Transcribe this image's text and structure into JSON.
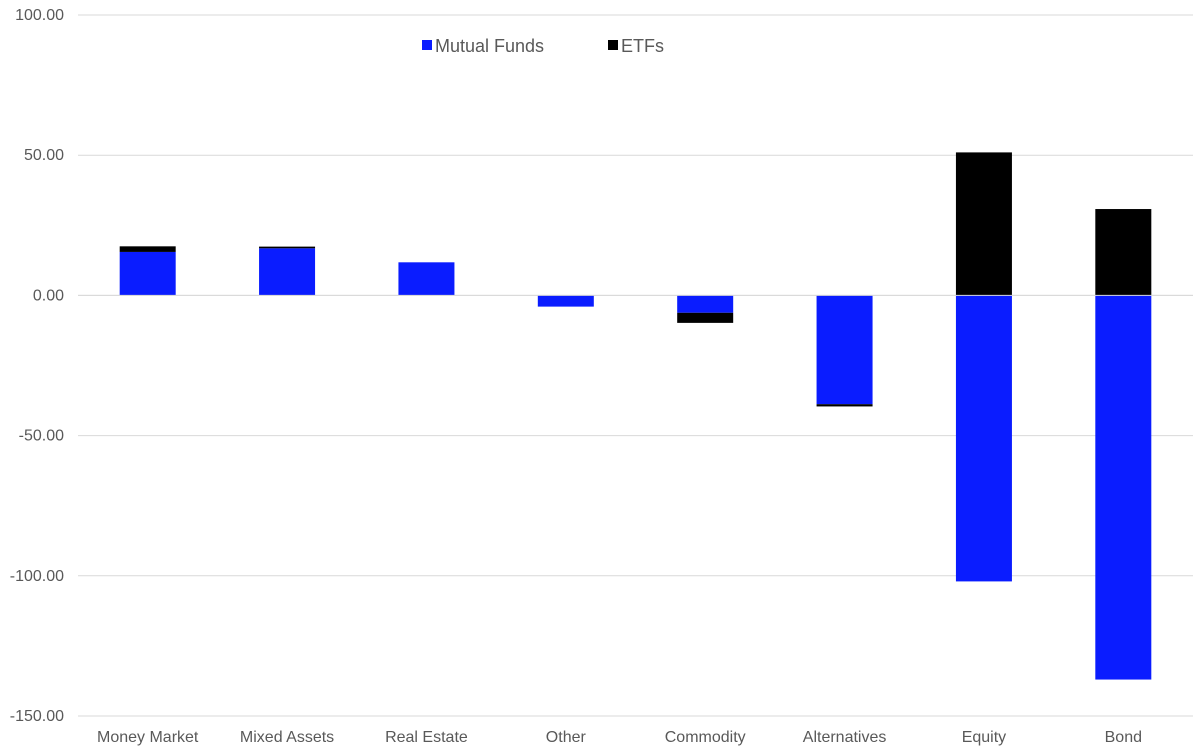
{
  "chart_data": {
    "type": "bar",
    "stacked": true,
    "categories": [
      "Money Market",
      "Mixed Assets",
      "Real Estate",
      "Other",
      "Commodity",
      "Alternatives",
      "Equity",
      "Bond"
    ],
    "series": [
      {
        "name": "Mutual Funds",
        "color": "#0a1cff",
        "values": [
          15.5,
          16.8,
          11.8,
          -4.0,
          -6.2,
          -38.8,
          -102.0,
          -137.0
        ]
      },
      {
        "name": "ETFs",
        "color": "#000000",
        "values": [
          2.0,
          0.6,
          0.0,
          0.0,
          -3.6,
          -0.8,
          51.0,
          30.8
        ]
      }
    ],
    "y_ticks": [
      "100.00",
      "50.00",
      "0.00",
      "-50.00",
      "-100.00",
      "-150.00"
    ],
    "ylim": [
      -150,
      100
    ],
    "grid": true,
    "legend_position": "top-center",
    "title": "",
    "xlabel": "",
    "ylabel": ""
  }
}
